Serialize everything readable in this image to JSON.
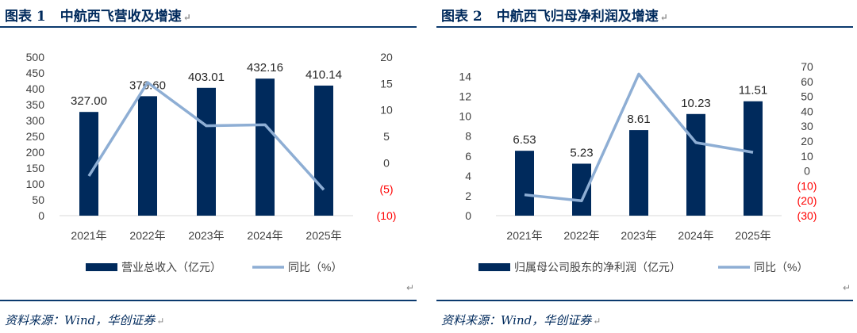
{
  "charts": [
    {
      "caption_label": "图表 1",
      "caption_title": "中航西飞营收及增速",
      "source": "资料来源：Wind，华创证券",
      "chart_data": {
        "type": "bar+line",
        "categories": [
          "2021年",
          "2022年",
          "2023年",
          "2024年",
          "2025年"
        ],
        "bar_series": {
          "name": "营业总收入（亿元）",
          "values": [
            327.0,
            376.6,
            403.01,
            432.16,
            410.14
          ],
          "labels": [
            "327.00",
            "376.60",
            "403.01",
            "432.16",
            "410.14"
          ]
        },
        "line_series": {
          "name": "同比（%）",
          "values": [
            -2.5,
            15.2,
            7.0,
            7.2,
            -5.1
          ]
        },
        "left_axis": {
          "ticks": [
            "0",
            "50",
            "100",
            "150",
            "200",
            "250",
            "300",
            "350",
            "400",
            "450",
            "500"
          ],
          "ylim": [
            0,
            500
          ]
        },
        "right_axis": {
          "ticks": [
            "(10)",
            "(5)",
            "0",
            "5",
            "10",
            "15",
            "20"
          ],
          "ylim": [
            -10,
            20
          ]
        },
        "legend_position": "bottom"
      }
    },
    {
      "caption_label": "图表 2",
      "caption_title": "中航西飞归母净利润及增速",
      "source": "资料来源：Wind，华创证券",
      "chart_data": {
        "type": "bar+line",
        "categories": [
          "2021年",
          "2022年",
          "2023年",
          "2024年",
          "2025年"
        ],
        "bar_series": {
          "name": "归属母公司股东的净利润（亿元）",
          "values": [
            6.53,
            5.23,
            8.61,
            10.23,
            11.51
          ],
          "labels": [
            "6.53",
            "5.23",
            "8.61",
            "10.23",
            "11.51"
          ]
        },
        "line_series": {
          "name": "同比（%）",
          "values": [
            -16,
            -20,
            65,
            19,
            12.5
          ]
        },
        "left_axis": {
          "ticks": [
            "0",
            "2",
            "4",
            "6",
            "8",
            "10",
            "12",
            "14"
          ],
          "ylim": [
            0,
            15
          ]
        },
        "right_axis": {
          "ticks": [
            "(30)",
            "(20)",
            "(10)",
            "0",
            "10",
            "20",
            "30",
            "40",
            "50",
            "60",
            "70"
          ],
          "ylim": [
            -30,
            70
          ]
        },
        "legend_position": "bottom"
      }
    }
  ],
  "colors": {
    "bar": "#002a5c",
    "line": "#8eaed4",
    "negative": "#ff0000",
    "title": "#002a5c"
  },
  "return_mark": "↵"
}
